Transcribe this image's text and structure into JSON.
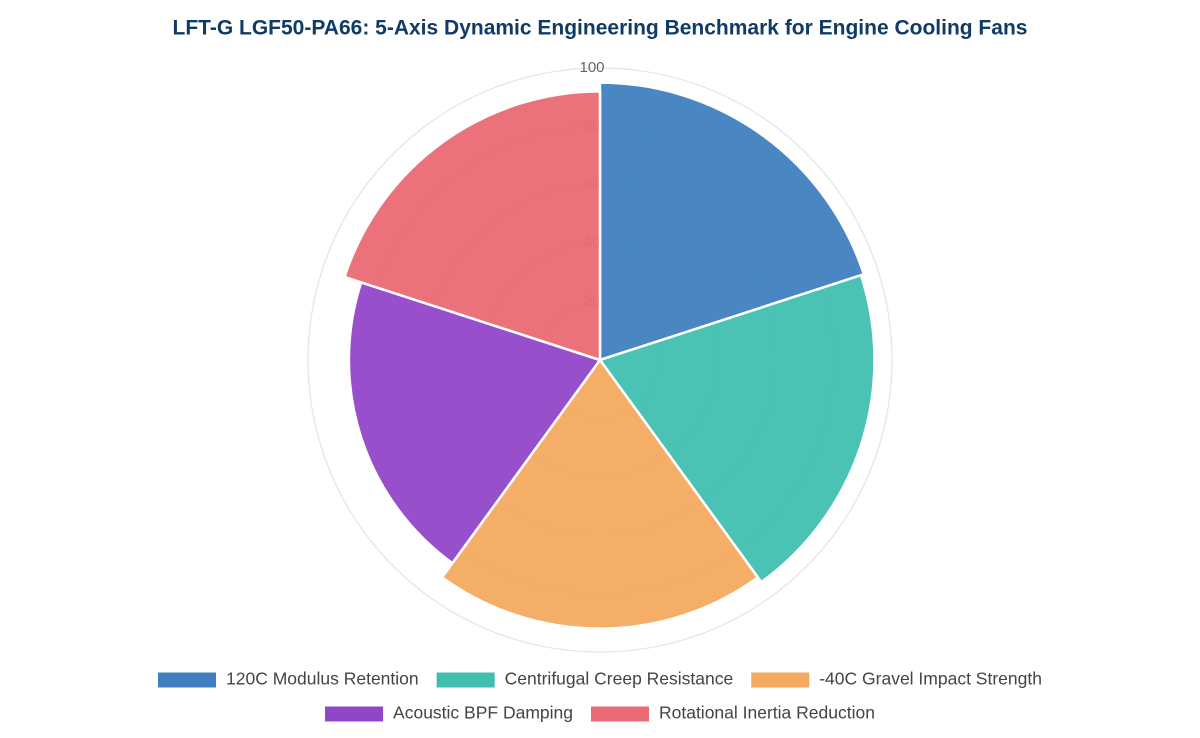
{
  "chart_data": {
    "type": "barpolar",
    "title": "LFT-G LGF50-PA66: 5-Axis Dynamic Engineering Benchmark for Engine Cooling Fans",
    "categories": [
      "120C Modulus Retention",
      "Centrifugal Creep Resistance",
      "-40C Gravel Impact Strength",
      "Acoustic BPF Damping",
      "Rotational Inertia Reduction"
    ],
    "values": [
      95,
      94,
      92,
      86,
      92
    ],
    "colors": [
      "#3f7fbf",
      "#40bfb0",
      "#f4aa60",
      "#9146c9",
      "#ea6a74"
    ],
    "rlim": [
      0,
      100
    ],
    "rticks": [
      20,
      40,
      60,
      80,
      100
    ],
    "grid": true,
    "legend": "bottom"
  }
}
